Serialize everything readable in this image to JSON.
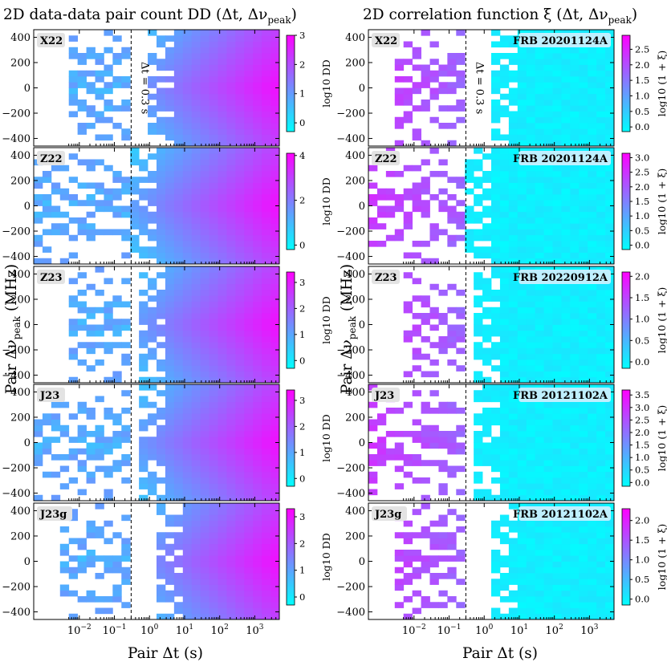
{
  "figure": {
    "left_title": "2D data-data pair count  DD (Δt, Δν",
    "left_title_sub": "peak",
    "left_title_end": ")",
    "right_title": "2D correlation function  ξ (Δt, Δν",
    "right_title_sub": "peak",
    "right_title_end": ")",
    "ylabel_main": "Pair  Δν",
    "ylabel_sub": "peak",
    "ylabel_unit": "  (MHz)",
    "xlabel": "Pair  Δt  (s)",
    "vline_label": "Δt = 0.3 s"
  },
  "colors": {
    "low": "#00ffff",
    "high": "#ff00ff"
  },
  "chart_data": [
    {
      "type": "heatmap",
      "column": "left",
      "row": 0,
      "tag": "X22",
      "frb": "",
      "cbar_label": "log10 DD",
      "cbar_range": [
        -0.3,
        3.0
      ],
      "cbar_ticks": [
        "0",
        "1",
        "2",
        "3"
      ],
      "cbar_tick_values": [
        0,
        1,
        2,
        3
      ],
      "xlim_log10": [
        -3.3,
        3.7
      ],
      "ylim": [
        -460,
        460
      ],
      "yticks": [
        "400",
        "200",
        "0",
        "−200",
        "−400"
      ],
      "ytick_values": [
        400,
        200,
        0,
        -200,
        -400
      ],
      "fill": {
        "low_t": -2.2,
        "high_t": -0.5,
        "peak_t": 3.7,
        "max": 3.0,
        "dense_from_t": 0.0
      }
    },
    {
      "type": "heatmap",
      "column": "left",
      "row": 1,
      "tag": "Z22",
      "frb": "",
      "cbar_label": "log10 DD",
      "cbar_range": [
        -0.2,
        4.1
      ],
      "cbar_ticks": [
        "0",
        "2",
        "4"
      ],
      "cbar_tick_values": [
        0,
        2,
        4
      ],
      "xlim_log10": [
        -3.3,
        3.7
      ],
      "ylim": [
        -460,
        460
      ],
      "yticks": [
        "400",
        "200",
        "0",
        "−200",
        "−400"
      ],
      "ytick_values": [
        400,
        200,
        0,
        -200,
        -400
      ],
      "fill": {
        "low_t": -3.3,
        "high_t": -0.5,
        "peak_t": 3.7,
        "max": 4.0,
        "dense_from_t": -0.6
      }
    },
    {
      "type": "heatmap",
      "column": "left",
      "row": 2,
      "tag": "Z23",
      "frb": "",
      "cbar_label": "log10 DD",
      "cbar_range": [
        -0.3,
        3.4
      ],
      "cbar_ticks": [
        "0",
        "1",
        "2",
        "3"
      ],
      "cbar_tick_values": [
        0,
        1,
        2,
        3
      ],
      "xlim_log10": [
        -3.3,
        3.7
      ],
      "ylim": [
        -460,
        460
      ],
      "yticks": [
        "400",
        "200",
        "0",
        "−200",
        "−400"
      ],
      "ytick_values": [
        400,
        200,
        0,
        -200,
        -400
      ],
      "fill": {
        "low_t": -2.4,
        "high_t": -0.5,
        "peak_t": 3.7,
        "max": 3.3,
        "dense_from_t": -0.3
      }
    },
    {
      "type": "heatmap",
      "column": "left",
      "row": 3,
      "tag": "J23",
      "frb": "",
      "cbar_label": "log10 DD",
      "cbar_range": [
        -0.3,
        3.4
      ],
      "cbar_ticks": [
        "0",
        "1",
        "2",
        "3"
      ],
      "cbar_tick_values": [
        0,
        1,
        2,
        3
      ],
      "xlim_log10": [
        -3.3,
        3.7
      ],
      "ylim": [
        -460,
        460
      ],
      "yticks": [
        "400",
        "200",
        "0",
        "−200",
        "−400"
      ],
      "ytick_values": [
        400,
        200,
        0,
        -200,
        -400
      ],
      "fill": {
        "low_t": -3.3,
        "high_t": -0.5,
        "peak_t": 3.7,
        "max": 3.3,
        "dense_from_t": -0.3
      }
    },
    {
      "type": "heatmap",
      "column": "left",
      "row": 4,
      "tag": "J23g",
      "frb": "",
      "cbar_label": "log10 DD",
      "cbar_range": [
        -0.3,
        3.3
      ],
      "cbar_ticks": [
        "0",
        "1",
        "2",
        "3"
      ],
      "cbar_tick_values": [
        0,
        1,
        2,
        3
      ],
      "xlim_log10": [
        -3.3,
        3.7
      ],
      "ylim": [
        -460,
        460
      ],
      "yticks": [
        "400",
        "200",
        "0",
        "−200",
        "−400"
      ],
      "ytick_values": [
        400,
        200,
        0,
        -200,
        -400
      ],
      "fill": {
        "low_t": -2.5,
        "high_t": -0.5,
        "peak_t": 3.7,
        "max": 3.2,
        "dense_from_t": 0.1
      }
    },
    {
      "type": "heatmap",
      "column": "right",
      "row": 0,
      "tag": "X22",
      "frb": "FRB 20201124A",
      "cbar_label": "log10 (1 + ξ)",
      "cbar_range": [
        -0.15,
        2.95
      ],
      "cbar_ticks": [
        "2.5",
        "2.0",
        "1.5",
        "1.0",
        "0.5",
        "0.0"
      ],
      "cbar_tick_values": [
        2.5,
        2.0,
        1.5,
        1.0,
        0.5,
        0.0
      ],
      "xlim_log10": [
        -3.3,
        3.7
      ],
      "ylim": [
        -460,
        460
      ],
      "yticks": [
        "400",
        "200",
        "0",
        "−200",
        "−400"
      ],
      "ytick_values": [
        400,
        200,
        0,
        -200,
        -400
      ],
      "fill": {
        "low_t": -2.6,
        "high_t": -0.5,
        "peak_t": -3.3,
        "max": 2.6,
        "dense_from_t": 0.2
      }
    },
    {
      "type": "heatmap",
      "column": "right",
      "row": 1,
      "tag": "Z22",
      "frb": "FRB 20201124A",
      "cbar_label": "log10 (1 + ξ)",
      "cbar_range": [
        -0.15,
        3.15
      ],
      "cbar_ticks": [
        "3.0",
        "2.5",
        "2.0",
        "1.5",
        "1.0",
        "0.5",
        "0.0"
      ],
      "cbar_tick_values": [
        3.0,
        2.5,
        2.0,
        1.5,
        1.0,
        0.5,
        0.0
      ],
      "xlim_log10": [
        -3.3,
        3.7
      ],
      "ylim": [
        -460,
        460
      ],
      "yticks": [
        "400",
        "200",
        "0",
        "−200",
        "−400"
      ],
      "ytick_values": [
        400,
        200,
        0,
        -200,
        -400
      ],
      "fill": {
        "low_t": -3.3,
        "high_t": -0.5,
        "peak_t": -3.3,
        "max": 3.0,
        "dense_from_t": -0.6
      }
    },
    {
      "type": "heatmap",
      "column": "right",
      "row": 2,
      "tag": "Z23",
      "frb": "FRB 20220912A",
      "cbar_label": "log10 (1 + ξ)",
      "cbar_range": [
        -0.15,
        2.1
      ],
      "cbar_ticks": [
        "2.0",
        "1.5",
        "1.0",
        "0.5",
        "0.0"
      ],
      "cbar_tick_values": [
        2.0,
        1.5,
        1.0,
        0.5,
        0.0
      ],
      "xlim_log10": [
        -3.3,
        3.7
      ],
      "ylim": [
        -460,
        460
      ],
      "yticks": [
        "400",
        "200",
        "0",
        "−200",
        "−400"
      ],
      "ytick_values": [
        400,
        200,
        0,
        -200,
        -400
      ],
      "fill": {
        "low_t": -2.4,
        "high_t": -0.5,
        "peak_t": -3.3,
        "max": 1.9,
        "dense_from_t": -0.3
      }
    },
    {
      "type": "heatmap",
      "column": "right",
      "row": 3,
      "tag": "J23",
      "frb": "FRB 20121102A",
      "cbar_label": "log10 (1 + ξ)",
      "cbar_range": [
        -0.15,
        3.7
      ],
      "cbar_ticks": [
        "3.5",
        "3.0",
        "2.5",
        "2.0",
        "1.5",
        "1.0",
        "0.5",
        "0.0"
      ],
      "cbar_tick_values": [
        3.5,
        3.0,
        2.5,
        2.0,
        1.5,
        1.0,
        0.5,
        0.0
      ],
      "xlim_log10": [
        -3.3,
        3.7
      ],
      "ylim": [
        -460,
        460
      ],
      "yticks": [
        "400",
        "200",
        "0",
        "−200",
        "−400"
      ],
      "ytick_values": [
        400,
        200,
        0,
        -200,
        -400
      ],
      "fill": {
        "low_t": -3.3,
        "high_t": -0.5,
        "peak_t": -3.3,
        "max": 3.5,
        "dense_from_t": -0.3
      }
    },
    {
      "type": "heatmap",
      "column": "right",
      "row": 4,
      "tag": "J23g",
      "frb": "FRB 20121102A",
      "cbar_label": "log10 (1 + ξ)",
      "cbar_range": [
        -0.15,
        2.3
      ],
      "cbar_ticks": [
        "2.0",
        "1.5",
        "1.0",
        "0.5",
        "0.0"
      ],
      "cbar_tick_values": [
        2.0,
        1.5,
        1.0,
        0.5,
        0.0
      ],
      "xlim_log10": [
        -3.3,
        3.7
      ],
      "ylim": [
        -460,
        460
      ],
      "yticks": [
        "400",
        "200",
        "0",
        "−200",
        "−400"
      ],
      "ytick_values": [
        400,
        200,
        0,
        -200,
        -400
      ],
      "fill": {
        "low_t": -2.5,
        "high_t": -0.5,
        "peak_t": -3.3,
        "max": 2.1,
        "dense_from_t": 0.1
      }
    }
  ],
  "x_axis": {
    "ticks": [
      "10",
      "10",
      "10",
      "10",
      "10",
      "10"
    ],
    "tick_exponents": [
      "−2",
      "−1",
      "0",
      "1",
      "2",
      "3"
    ],
    "tick_log10": [
      -2,
      -1,
      0,
      1,
      2,
      3
    ],
    "vline_log10": -0.523
  }
}
